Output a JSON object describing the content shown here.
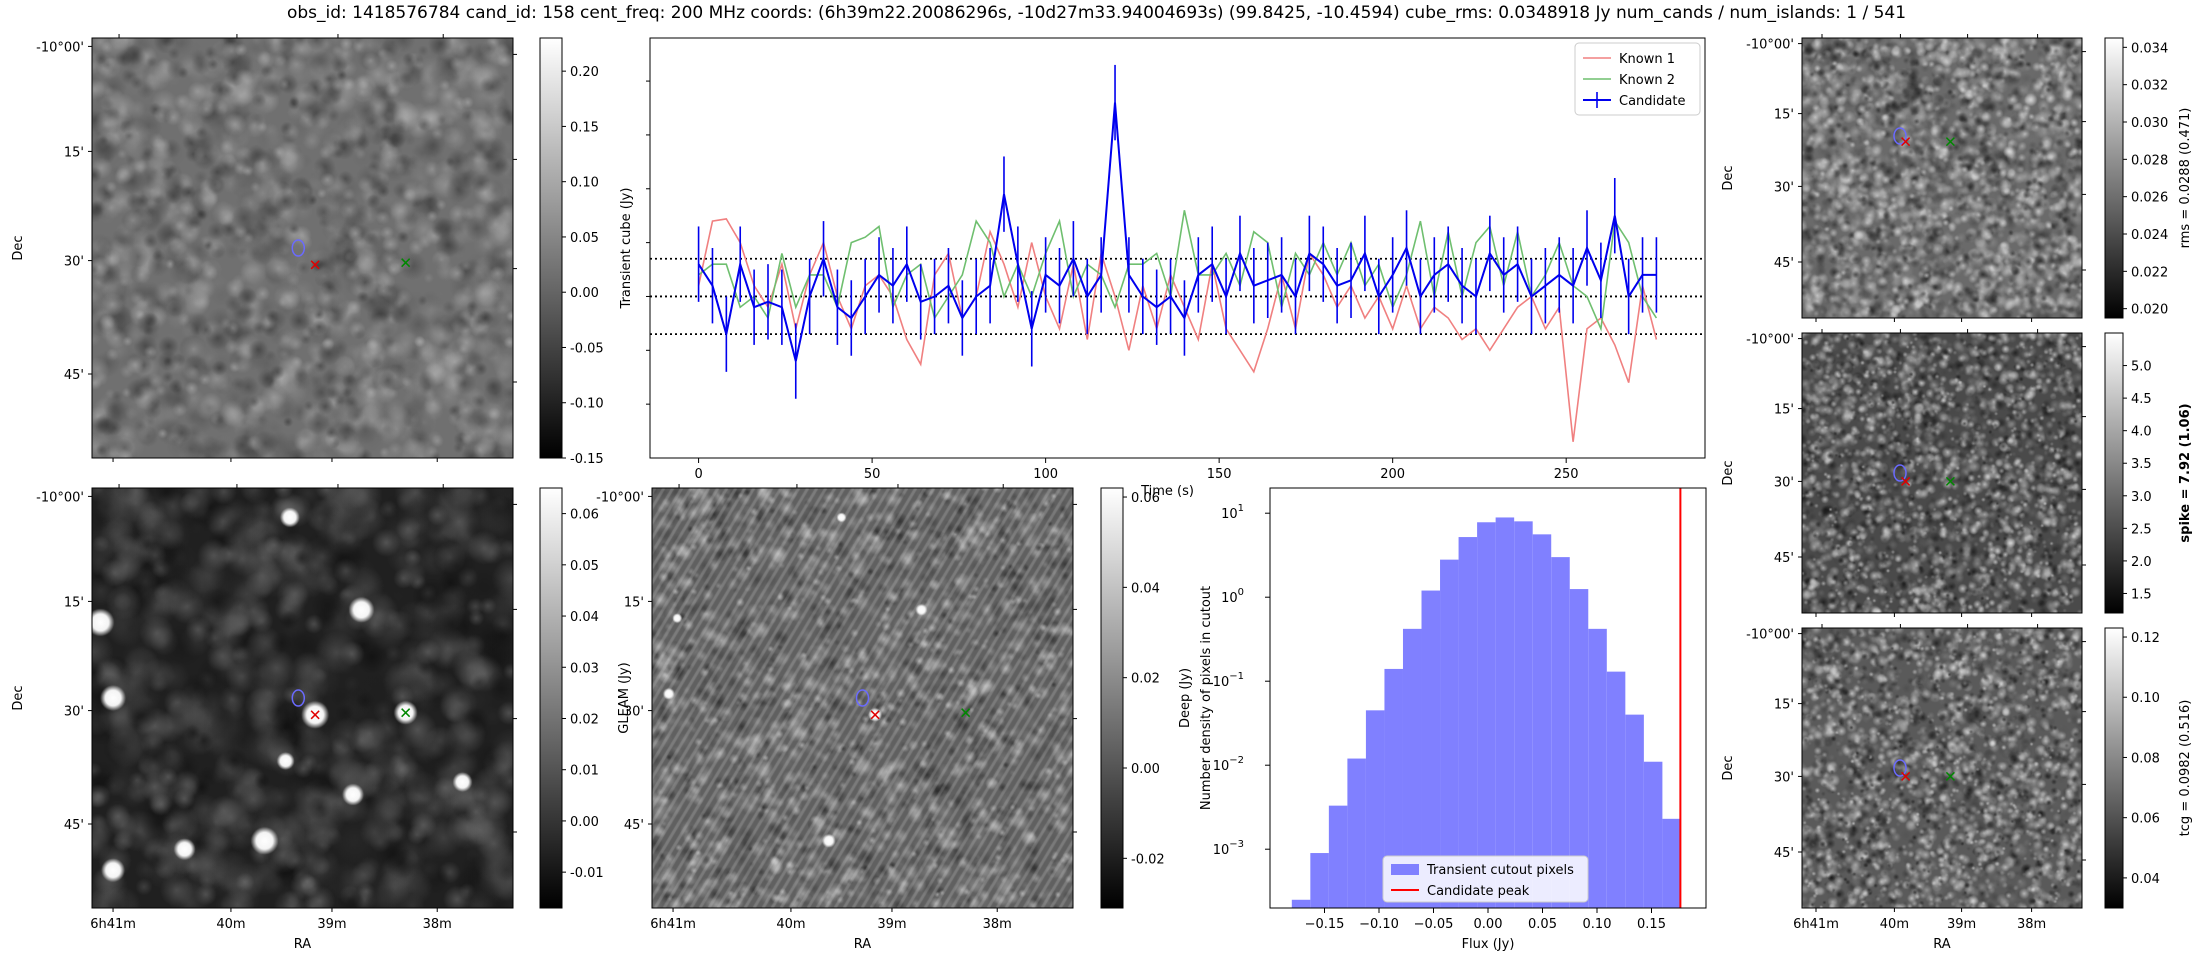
{
  "title": "obs_id: 1418576784 cand_id: 158 cent_freq: 200 MHz coords: (6h39m22.20086296s, -10d27m33.94004693s) (99.8425, -10.4594) cube_rms: 0.0348918 Jy num_cands / num_islands: 1 / 541",
  "colors": {
    "known1": "#f08080",
    "known2": "#6fbf6f",
    "candidate": "#0000ee",
    "hist": "#8080ff",
    "peak": "#ff0000",
    "marker_blue": "#6a6aff",
    "marker_red": "#e00000",
    "marker_green": "#008800"
  },
  "sky_axes": {
    "dec_ticks": [
      "-10°00'",
      "15'",
      "30'",
      "45'"
    ],
    "ra_ticks": [
      "6h41m",
      "40m",
      "39m",
      "38m"
    ],
    "ra_label": "RA",
    "dec_label": "Dec"
  },
  "chart_data": [
    {
      "id": "transient-cutout",
      "type": "image",
      "xlabel": "",
      "ylabel": "Dec",
      "colorbar": {
        "label": "",
        "range": [
          -0.15,
          0.23
        ],
        "ticks": [
          "0.20",
          "0.15",
          "0.10",
          "0.05",
          "0.00",
          "-0.05",
          "-0.10",
          "-0.15"
        ]
      }
    },
    {
      "id": "lightcurve",
      "type": "line",
      "xlabel": "Time (s)",
      "ylabel": "Transient cube (Jy)",
      "xlim": [
        -14,
        290
      ],
      "ylim": [
        -0.15,
        0.24
      ],
      "xticks": [
        "0",
        "50",
        "100",
        "150",
        "200",
        "250"
      ],
      "hlines": [
        0.035,
        0.0,
        -0.035
      ],
      "legend": [
        "Known 1",
        "Known 2",
        "Candidate"
      ],
      "x": [
        0,
        4,
        8,
        12,
        16,
        20,
        24,
        28,
        32,
        36,
        40,
        44,
        48,
        52,
        56,
        60,
        64,
        68,
        72,
        76,
        80,
        84,
        88,
        92,
        96,
        100,
        104,
        108,
        112,
        116,
        120,
        124,
        128,
        132,
        136,
        140,
        144,
        148,
        152,
        156,
        160,
        164,
        168,
        172,
        176,
        180,
        184,
        188,
        192,
        196,
        200,
        204,
        208,
        212,
        216,
        220,
        224,
        228,
        232,
        236,
        240,
        244,
        248,
        252,
        256,
        260,
        264,
        268,
        272,
        276
      ],
      "series": [
        {
          "name": "Known 1",
          "values": [
            0.01,
            0.07,
            0.072,
            0.05,
            0.01,
            -0.01,
            0.03,
            -0.03,
            0.02,
            0.05,
            0.0,
            -0.03,
            0.01,
            0.02,
            0.0,
            -0.04,
            -0.063,
            0.02,
            0.04,
            -0.02,
            0.0,
            0.06,
            0.03,
            -0.01,
            0.05,
            0.0,
            -0.03,
            0.03,
            -0.04,
            0.04,
            0.0,
            -0.05,
            0.01,
            -0.03,
            0.02,
            -0.01,
            -0.04,
            0.03,
            -0.03,
            -0.05,
            -0.07,
            -0.03,
            0.02,
            -0.03,
            0.04,
            0.02,
            -0.01,
            0.01,
            -0.02,
            0.0,
            -0.03,
            0.01,
            -0.03,
            -0.01,
            -0.02,
            -0.04,
            -0.03,
            -0.05,
            -0.03,
            -0.01,
            0.0,
            -0.03,
            -0.01,
            -0.135,
            -0.03,
            -0.02,
            -0.045,
            -0.08,
            0.01,
            -0.04
          ]
        },
        {
          "name": "Known 2",
          "values": [
            0.02,
            0.03,
            0.03,
            -0.01,
            0.0,
            -0.02,
            0.04,
            -0.01,
            0.02,
            0.02,
            -0.01,
            0.05,
            0.055,
            0.065,
            -0.01,
            0.02,
            0.03,
            -0.02,
            0.0,
            0.02,
            0.07,
            0.05,
            0.0,
            0.03,
            0.0,
            0.04,
            0.07,
            0.0,
            0.03,
            0.02,
            -0.01,
            0.03,
            0.03,
            0.04,
            0.0,
            0.08,
            0.02,
            0.02,
            0.04,
            0.01,
            0.06,
            0.05,
            -0.01,
            0.04,
            0.02,
            0.05,
            0.02,
            0.05,
            0.01,
            0.03,
            -0.01,
            0.02,
            0.07,
            0.0,
            0.06,
            0.0,
            0.05,
            0.065,
            0.01,
            0.06,
            0.0,
            0.02,
            0.05,
            0.01,
            0.0,
            -0.03,
            0.07,
            0.05,
            0.0,
            -0.02
          ]
        },
        {
          "name": "Candidate",
          "values": [
            0.03,
            0.01,
            -0.035,
            0.03,
            -0.01,
            -0.005,
            -0.01,
            -0.06,
            0.0,
            0.035,
            -0.01,
            -0.02,
            0.0,
            0.02,
            0.01,
            0.03,
            -0.005,
            0.0,
            0.01,
            -0.02,
            0.0,
            0.01,
            0.095,
            0.03,
            -0.03,
            0.02,
            0.01,
            0.035,
            0.0,
            0.02,
            0.18,
            0.02,
            0.0,
            -0.01,
            0.0,
            -0.02,
            0.02,
            0.03,
            0.0,
            0.04,
            0.01,
            0.015,
            0.02,
            0.0,
            0.04,
            0.03,
            0.01,
            0.015,
            0.04,
            0.0,
            0.02,
            0.045,
            0.0,
            0.02,
            0.03,
            0.01,
            0.0,
            0.04,
            0.02,
            0.03,
            0.0,
            0.01,
            0.02,
            0.01,
            0.045,
            0.015,
            0.075,
            0.0,
            0.02,
            0.02
          ]
        },
        {
          "name": "Candidate error",
          "values": [
            0.035,
            0.035,
            0.035,
            0.035,
            0.035,
            0.035,
            0.035,
            0.035,
            0.035,
            0.035,
            0.035,
            0.035,
            0.035,
            0.035,
            0.035,
            0.035,
            0.035,
            0.035,
            0.035,
            0.035,
            0.035,
            0.035,
            0.035,
            0.035,
            0.035,
            0.035,
            0.035,
            0.035,
            0.035,
            0.035,
            0.035,
            0.035,
            0.035,
            0.035,
            0.035,
            0.035,
            0.035,
            0.035,
            0.035,
            0.035,
            0.035,
            0.035,
            0.035,
            0.035,
            0.035,
            0.035,
            0.035,
            0.035,
            0.035,
            0.035,
            0.035,
            0.035,
            0.035,
            0.035,
            0.035,
            0.035,
            0.035,
            0.035,
            0.035,
            0.035,
            0.035,
            0.035,
            0.035,
            0.035,
            0.035,
            0.035,
            0.035,
            0.035,
            0.035,
            0.035
          ]
        }
      ]
    },
    {
      "id": "gleam-cutout",
      "type": "image",
      "xlabel": "RA",
      "ylabel": "Dec",
      "colorbar": {
        "label": "GLEAM (Jy)",
        "range": [
          -0.017,
          0.065
        ],
        "ticks": [
          "0.06",
          "0.05",
          "0.04",
          "0.03",
          "0.02",
          "0.01",
          "0.00",
          "-0.01"
        ]
      }
    },
    {
      "id": "deep-cutout",
      "type": "image",
      "xlabel": "RA",
      "ylabel": "",
      "colorbar": {
        "label": "Deep (Jy)",
        "range": [
          -0.031,
          0.062
        ],
        "ticks": [
          "0.06",
          "0.04",
          "0.02",
          "0.00",
          "-0.02"
        ]
      }
    },
    {
      "id": "flux-histogram",
      "type": "bar",
      "xlabel": "Flux (Jy)",
      "ylabel": "Number density of pixels in cutout",
      "yscale": "log",
      "xlim": [
        -0.2,
        0.2
      ],
      "ylim_exp": [
        -3.7,
        1.3
      ],
      "xticks": [
        "-0.15",
        "-0.10",
        "-0.05",
        "0.00",
        "0.05",
        "0.10",
        "0.15"
      ],
      "yticks": [
        "10^1",
        "10^0",
        "10^-1",
        "10^-2",
        "10^-3"
      ],
      "bin_edges": [
        -0.18,
        -0.163,
        -0.146,
        -0.129,
        -0.112,
        -0.095,
        -0.078,
        -0.061,
        -0.044,
        -0.027,
        -0.01,
        0.007,
        0.024,
        0.041,
        0.058,
        0.075,
        0.092,
        0.109,
        0.126,
        0.143,
        0.16,
        0.177
      ],
      "values": [
        0.00025,
        0.0009,
        0.0033,
        0.012,
        0.045,
        0.14,
        0.42,
        1.2,
        2.8,
        5.2,
        7.8,
        8.9,
        8.0,
        5.6,
        3.0,
        1.25,
        0.42,
        0.13,
        0.04,
        0.011,
        0.0023
      ],
      "peak_x": 0.1765,
      "legend": [
        "Transient cutout pixels",
        "Candidate peak"
      ]
    },
    {
      "id": "rms-cutout",
      "type": "image",
      "ylabel": "Dec",
      "colorbar": {
        "label": "rms = 0.0288 (0.471)",
        "range": [
          0.0195,
          0.0345
        ],
        "ticks": [
          "0.034",
          "0.032",
          "0.030",
          "0.028",
          "0.026",
          "0.024",
          "0.022",
          "0.020"
        ]
      }
    },
    {
      "id": "spike-cutout",
      "type": "image",
      "ylabel": "Dec",
      "colorbar": {
        "label": "spike = 7.92 (1.06)",
        "range": [
          1.2,
          5.5
        ],
        "ticks": [
          "5.0",
          "4.5",
          "4.0",
          "3.5",
          "3.0",
          "2.5",
          "2.0",
          "1.5"
        ]
      }
    },
    {
      "id": "tcg-cutout",
      "type": "image",
      "xlabel": "RA",
      "ylabel": "Dec",
      "colorbar": {
        "label": "tcg = 0.0982 (0.516)",
        "range": [
          0.03,
          0.123
        ],
        "ticks": [
          "0.12",
          "0.10",
          "0.08",
          "0.06",
          "0.04"
        ]
      }
    }
  ]
}
